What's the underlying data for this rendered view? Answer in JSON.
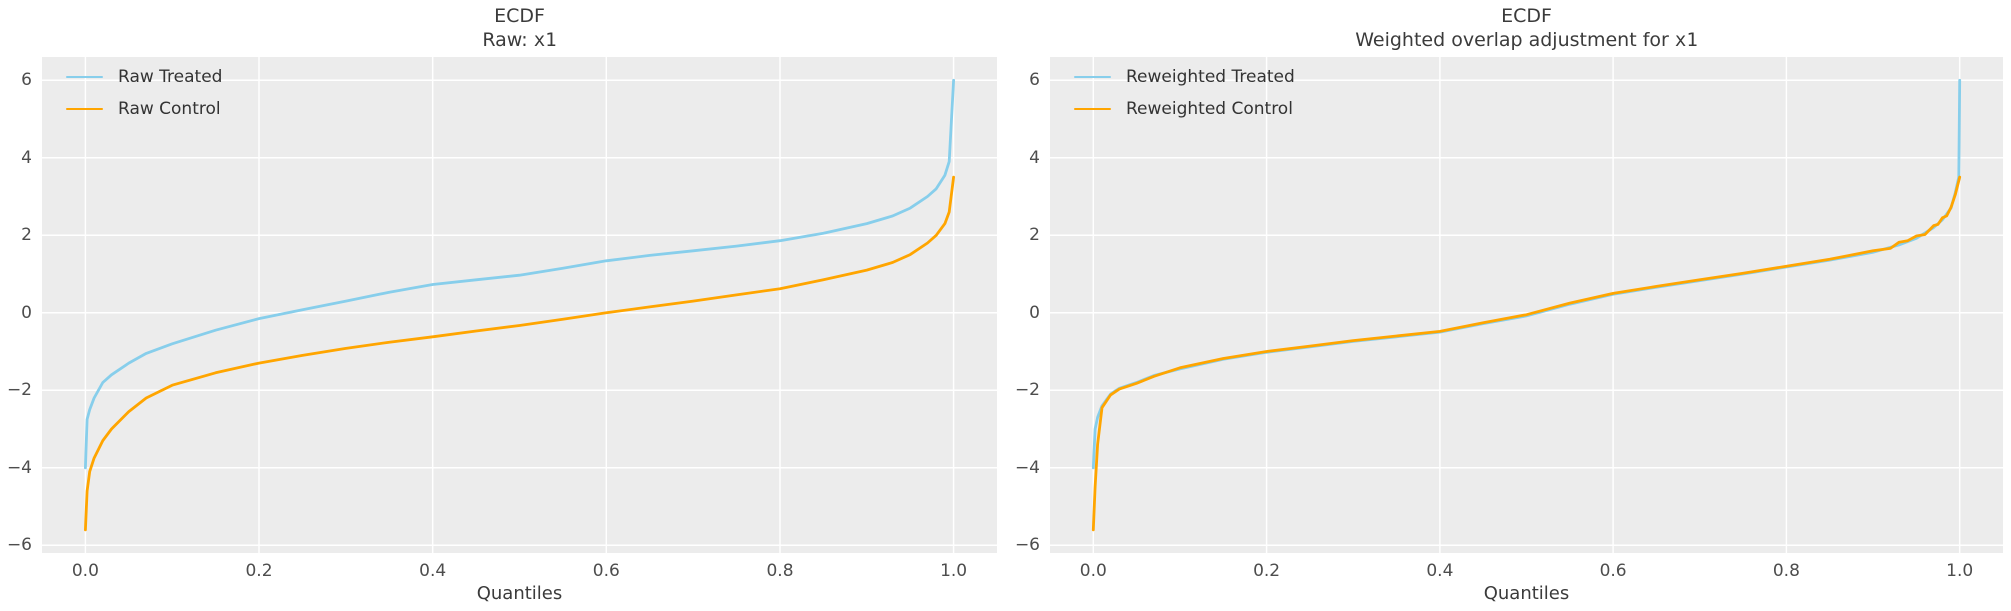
{
  "figure": {
    "background_color": "#ffffff",
    "axes_background_color": "#ececec",
    "grid_color": "#ffffff",
    "treated_color": "#87CEEB",
    "control_color": "#FFA500"
  },
  "chart_data": [
    {
      "type": "line",
      "title": "ECDF",
      "subtitle_prefix": "Raw: ",
      "subtitle_var": "x1",
      "xlabel": "Quantiles",
      "ylabel": "",
      "xlim": [
        -0.05,
        1.05
      ],
      "ylim": [
        -6.2,
        6.6
      ],
      "xticks": [
        0,
        0.2,
        0.4,
        0.6,
        0.8,
        1.0
      ],
      "xtick_labels": [
        "0.0",
        "0.2",
        "0.4",
        "0.6",
        "0.8",
        "1.0"
      ],
      "yticks": [
        -6,
        -4,
        -2,
        0,
        2,
        4,
        6
      ],
      "ytick_labels": [
        "−6",
        "−4",
        "−2",
        "0",
        "2",
        "4",
        "6"
      ],
      "grid": true,
      "legend_position": "upper left",
      "series": [
        {
          "name": "Raw Treated",
          "color": "#87CEEB",
          "points": [
            [
              0,
              -4.0
            ],
            [
              0.002,
              -2.75
            ],
            [
              0.005,
              -2.5
            ],
            [
              0.01,
              -2.2
            ],
            [
              0.02,
              -1.8
            ],
            [
              0.03,
              -1.6
            ],
            [
              0.05,
              -1.3
            ],
            [
              0.07,
              -1.05
            ],
            [
              0.1,
              -0.8
            ],
            [
              0.15,
              -0.45
            ],
            [
              0.2,
              -0.15
            ],
            [
              0.25,
              0.08
            ],
            [
              0.3,
              0.3
            ],
            [
              0.35,
              0.53
            ],
            [
              0.4,
              0.73
            ],
            [
              0.45,
              0.85
            ],
            [
              0.5,
              0.97
            ],
            [
              0.55,
              1.15
            ],
            [
              0.6,
              1.34
            ],
            [
              0.65,
              1.48
            ],
            [
              0.7,
              1.6
            ],
            [
              0.75,
              1.72
            ],
            [
              0.8,
              1.86
            ],
            [
              0.85,
              2.05
            ],
            [
              0.9,
              2.3
            ],
            [
              0.93,
              2.5
            ],
            [
              0.95,
              2.7
            ],
            [
              0.97,
              3.0
            ],
            [
              0.98,
              3.2
            ],
            [
              0.99,
              3.55
            ],
            [
              0.995,
              3.9
            ],
            [
              1.0,
              6.0
            ]
          ]
        },
        {
          "name": "Raw Control",
          "color": "#FFA500",
          "points": [
            [
              0,
              -5.6
            ],
            [
              0.002,
              -4.6
            ],
            [
              0.005,
              -4.1
            ],
            [
              0.01,
              -3.75
            ],
            [
              0.02,
              -3.3
            ],
            [
              0.03,
              -3.0
            ],
            [
              0.05,
              -2.55
            ],
            [
              0.07,
              -2.2
            ],
            [
              0.1,
              -1.87
            ],
            [
              0.15,
              -1.55
            ],
            [
              0.2,
              -1.3
            ],
            [
              0.25,
              -1.1
            ],
            [
              0.3,
              -0.92
            ],
            [
              0.35,
              -0.76
            ],
            [
              0.4,
              -0.62
            ],
            [
              0.45,
              -0.47
            ],
            [
              0.5,
              -0.33
            ],
            [
              0.55,
              -0.17
            ],
            [
              0.6,
              0.0
            ],
            [
              0.65,
              0.15
            ],
            [
              0.7,
              0.3
            ],
            [
              0.75,
              0.46
            ],
            [
              0.8,
              0.62
            ],
            [
              0.85,
              0.85
            ],
            [
              0.9,
              1.1
            ],
            [
              0.93,
              1.3
            ],
            [
              0.95,
              1.5
            ],
            [
              0.97,
              1.8
            ],
            [
              0.98,
              2.0
            ],
            [
              0.99,
              2.3
            ],
            [
              0.995,
              2.6
            ],
            [
              1.0,
              3.5
            ]
          ]
        }
      ]
    },
    {
      "type": "line",
      "title": "ECDF",
      "subtitle_prefix": "Weighted overlap adjustment for ",
      "subtitle_var": "x1",
      "xlabel": "Quantiles",
      "ylabel": "",
      "xlim": [
        -0.05,
        1.05
      ],
      "ylim": [
        -6.2,
        6.6
      ],
      "xticks": [
        0,
        0.2,
        0.4,
        0.6,
        0.8,
        1.0
      ],
      "xtick_labels": [
        "0.0",
        "0.2",
        "0.4",
        "0.6",
        "0.8",
        "1.0"
      ],
      "yticks": [
        -6,
        -4,
        -2,
        0,
        2,
        4,
        6
      ],
      "ytick_labels": [
        "−6",
        "−4",
        "−2",
        "0",
        "2",
        "4",
        "6"
      ],
      "grid": true,
      "legend_position": "upper left",
      "series": [
        {
          "name": "Reweighted Treated",
          "color": "#87CEEB",
          "points": [
            [
              0,
              -4.0
            ],
            [
              0.002,
              -3.0
            ],
            [
              0.005,
              -2.7
            ],
            [
              0.01,
              -2.4
            ],
            [
              0.02,
              -2.1
            ],
            [
              0.03,
              -1.95
            ],
            [
              0.05,
              -1.8
            ],
            [
              0.07,
              -1.62
            ],
            [
              0.1,
              -1.45
            ],
            [
              0.15,
              -1.2
            ],
            [
              0.2,
              -1.02
            ],
            [
              0.25,
              -0.88
            ],
            [
              0.3,
              -0.74
            ],
            [
              0.35,
              -0.62
            ],
            [
              0.4,
              -0.5
            ],
            [
              0.45,
              -0.28
            ],
            [
              0.5,
              -0.08
            ],
            [
              0.55,
              0.22
            ],
            [
              0.6,
              0.48
            ],
            [
              0.65,
              0.66
            ],
            [
              0.7,
              0.83
            ],
            [
              0.75,
              1.0
            ],
            [
              0.8,
              1.18
            ],
            [
              0.85,
              1.36
            ],
            [
              0.9,
              1.56
            ],
            [
              0.93,
              1.75
            ],
            [
              0.95,
              1.92
            ],
            [
              0.97,
              2.2
            ],
            [
              0.98,
              2.4
            ],
            [
              0.99,
              2.7
            ],
            [
              0.995,
              3.1
            ],
            [
              0.999,
              3.5
            ],
            [
              1.0,
              6.0
            ]
          ]
        },
        {
          "name": "Reweighted Control",
          "color": "#FFA500",
          "points": [
            [
              0,
              -5.6
            ],
            [
              0.002,
              -4.5
            ],
            [
              0.005,
              -3.4
            ],
            [
              0.01,
              -2.45
            ],
            [
              0.02,
              -2.12
            ],
            [
              0.03,
              -1.97
            ],
            [
              0.05,
              -1.82
            ],
            [
              0.07,
              -1.64
            ],
            [
              0.1,
              -1.42
            ],
            [
              0.15,
              -1.18
            ],
            [
              0.2,
              -1.0
            ],
            [
              0.25,
              -0.86
            ],
            [
              0.3,
              -0.72
            ],
            [
              0.35,
              -0.6
            ],
            [
              0.4,
              -0.48
            ],
            [
              0.45,
              -0.26
            ],
            [
              0.5,
              -0.05
            ],
            [
              0.55,
              0.25
            ],
            [
              0.6,
              0.5
            ],
            [
              0.65,
              0.68
            ],
            [
              0.7,
              0.85
            ],
            [
              0.75,
              1.02
            ],
            [
              0.8,
              1.2
            ],
            [
              0.85,
              1.38
            ],
            [
              0.9,
              1.6
            ],
            [
              0.92,
              1.66
            ],
            [
              0.93,
              1.82
            ],
            [
              0.94,
              1.86
            ],
            [
              0.95,
              1.98
            ],
            [
              0.96,
              2.02
            ],
            [
              0.97,
              2.25
            ],
            [
              0.975,
              2.28
            ],
            [
              0.98,
              2.45
            ],
            [
              0.985,
              2.5
            ],
            [
              0.99,
              2.72
            ],
            [
              0.995,
              3.05
            ],
            [
              1.0,
              3.5
            ]
          ]
        }
      ]
    }
  ]
}
